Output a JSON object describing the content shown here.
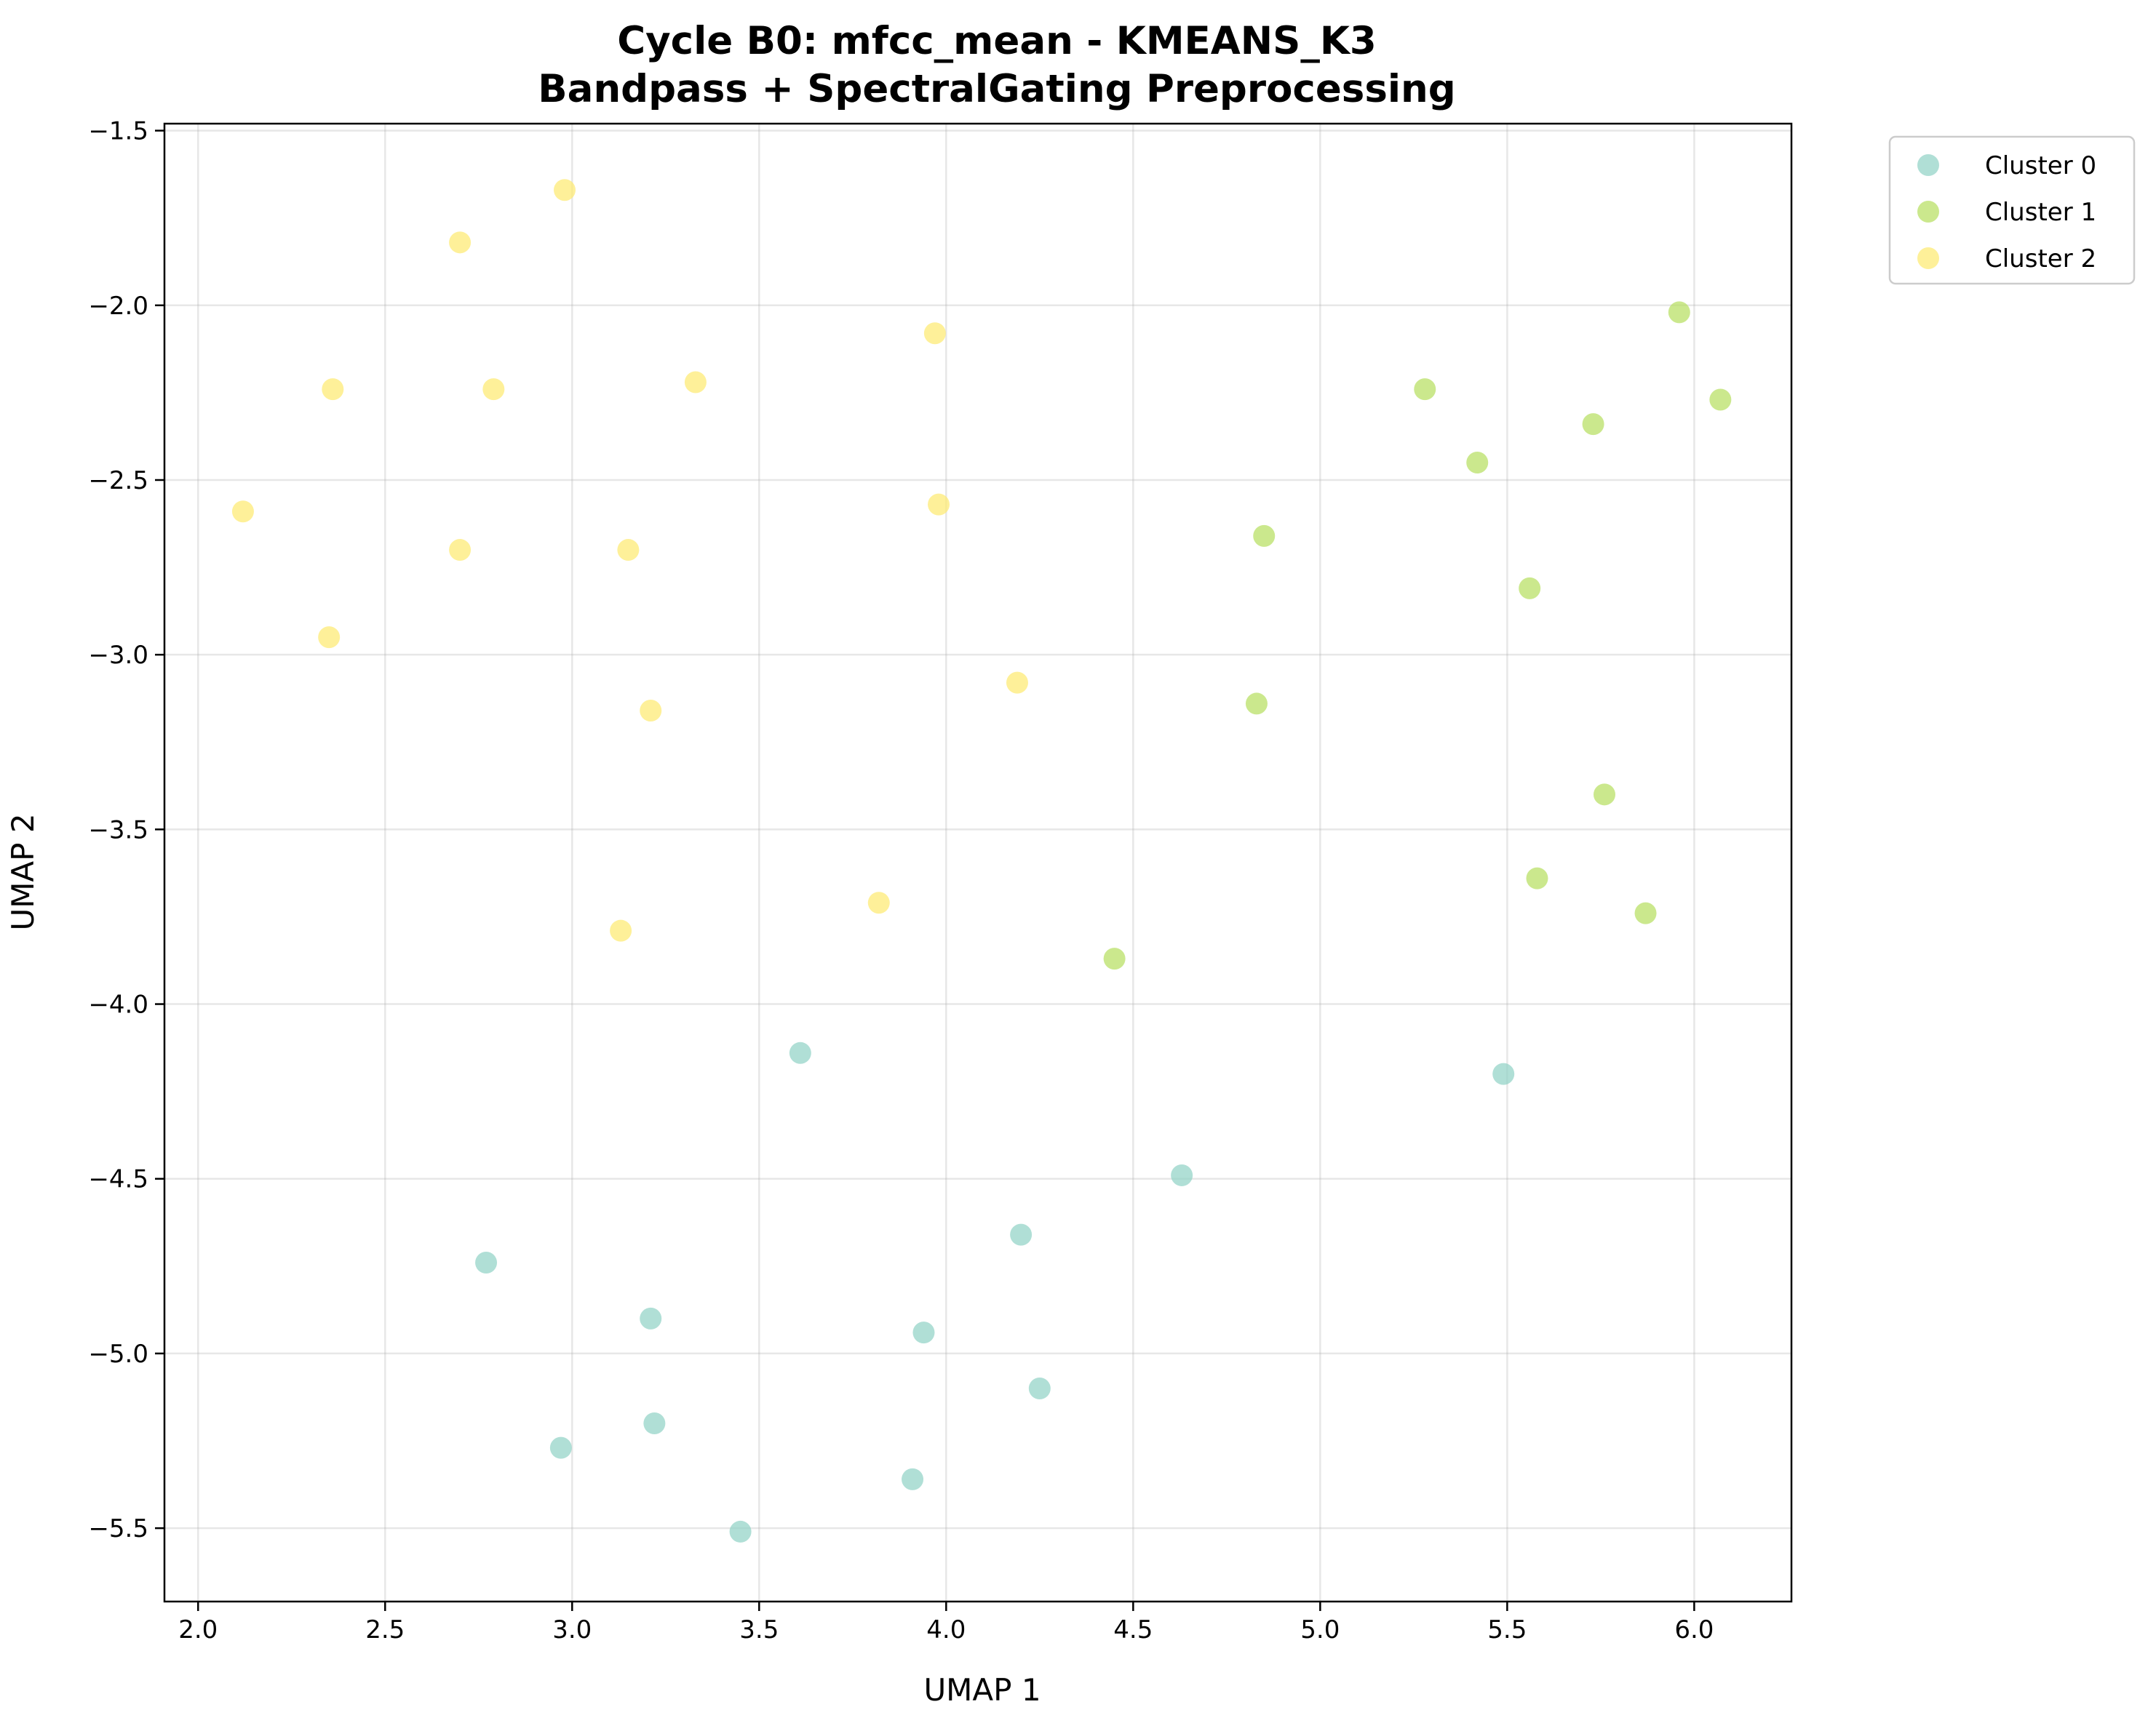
{
  "chart_data": {
    "type": "scatter",
    "title": [
      "Cycle B0: mfcc_mean - KMEANS_K3",
      "Bandpass + SpectralGating Preprocessing"
    ],
    "xlabel": "UMAP 1",
    "ylabel": "UMAP 2",
    "xlim": [
      1.91,
      6.26
    ],
    "ylim": [
      -5.71,
      -1.48
    ],
    "xticks": [
      2.0,
      2.5,
      3.0,
      3.5,
      4.0,
      4.5,
      5.0,
      5.5,
      6.0
    ],
    "xtick_labels": [
      "2.0",
      "2.5",
      "3.0",
      "3.5",
      "4.0",
      "4.5",
      "5.0",
      "5.5",
      "6.0"
    ],
    "yticks": [
      -1.5,
      -2.0,
      -2.5,
      -3.0,
      -3.5,
      -4.0,
      -4.5,
      -5.0,
      -5.5
    ],
    "ytick_labels": [
      "−1.5",
      "−2.0",
      "−2.5",
      "−3.0",
      "−3.5",
      "−4.0",
      "−4.5",
      "−5.0",
      "−5.5"
    ],
    "grid": true,
    "legend_position": "outside-top-right",
    "series": [
      {
        "name": "Cluster 0",
        "color": "#8fd1c4",
        "points": [
          [
            3.61,
            -4.14
          ],
          [
            5.49,
            -4.2
          ],
          [
            4.63,
            -4.49
          ],
          [
            4.2,
            -4.66
          ],
          [
            2.77,
            -4.74
          ],
          [
            3.21,
            -4.9
          ],
          [
            3.94,
            -4.94
          ],
          [
            4.25,
            -5.1
          ],
          [
            3.22,
            -5.2
          ],
          [
            2.97,
            -5.27
          ],
          [
            3.91,
            -5.36
          ],
          [
            3.45,
            -5.51
          ]
        ]
      },
      {
        "name": "Cluster 1",
        "color": "#b5de5c",
        "points": [
          [
            5.96,
            -2.02
          ],
          [
            5.28,
            -2.24
          ],
          [
            6.07,
            -2.27
          ],
          [
            5.73,
            -2.34
          ],
          [
            5.42,
            -2.45
          ],
          [
            4.85,
            -2.66
          ],
          [
            5.56,
            -2.81
          ],
          [
            4.83,
            -3.14
          ],
          [
            5.76,
            -3.4
          ],
          [
            5.58,
            -3.64
          ],
          [
            5.87,
            -3.74
          ],
          [
            4.45,
            -3.87
          ]
        ]
      },
      {
        "name": "Cluster 2",
        "color": "#fde96e",
        "points": [
          [
            2.98,
            -1.67
          ],
          [
            2.7,
            -1.82
          ],
          [
            3.97,
            -2.08
          ],
          [
            3.33,
            -2.22
          ],
          [
            2.36,
            -2.24
          ],
          [
            2.79,
            -2.24
          ],
          [
            2.12,
            -2.59
          ],
          [
            3.98,
            -2.57
          ],
          [
            2.7,
            -2.7
          ],
          [
            3.15,
            -2.7
          ],
          [
            2.35,
            -2.95
          ],
          [
            4.19,
            -3.08
          ],
          [
            3.21,
            -3.16
          ],
          [
            3.82,
            -3.71
          ],
          [
            3.13,
            -3.79
          ]
        ]
      }
    ]
  }
}
